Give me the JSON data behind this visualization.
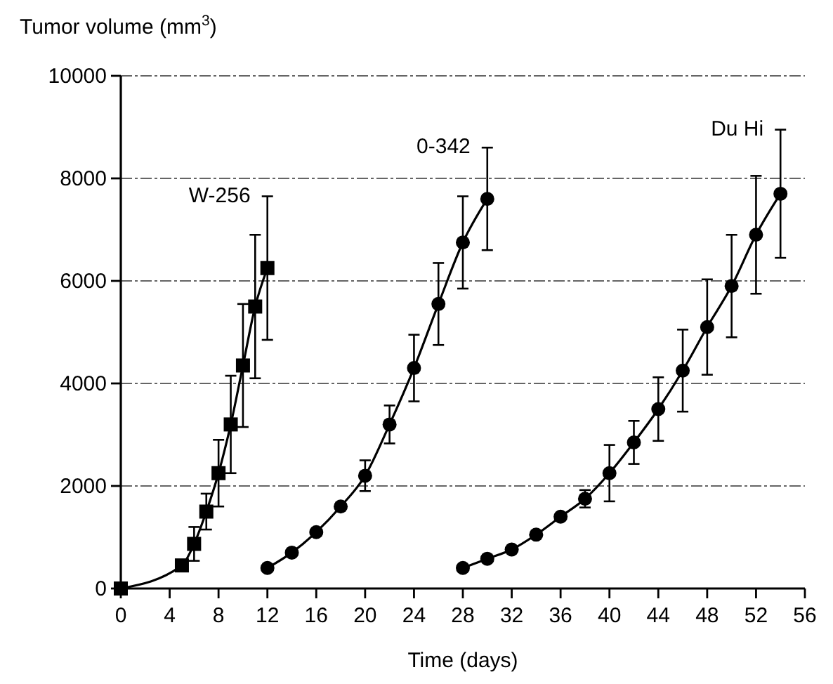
{
  "chart_data": {
    "type": "line",
    "xlabel": "Time (days)",
    "ylabel": "Tumor volume (mm$^{3}$)",
    "xlim": [
      0,
      56
    ],
    "xticks": [
      0,
      4,
      8,
      12,
      16,
      20,
      24,
      28,
      32,
      36,
      40,
      44,
      48,
      52,
      56
    ],
    "ylim": [
      0,
      10000
    ],
    "yticks": [
      0,
      2000,
      4000,
      6000,
      8000,
      10000
    ],
    "grid": "y",
    "line_style": "solid",
    "series": [
      {
        "name": "W-256",
        "color": "#000000",
        "marker": "square",
        "x": [
          0,
          5,
          6,
          7,
          8,
          9,
          10,
          11,
          12
        ],
        "values": [
          0,
          450,
          870,
          1500,
          2250,
          3200,
          4350,
          5500,
          6250
        ],
        "errors": [
          null,
          null,
          330,
          350,
          650,
          950,
          1200,
          1400,
          1400
        ]
      },
      {
        "name": "0-342",
        "color": "#000000",
        "marker": "circle",
        "x": [
          12,
          14,
          16,
          18,
          20,
          22,
          24,
          26,
          28,
          30
        ],
        "values": [
          400,
          700,
          1100,
          1600,
          2200,
          3200,
          4300,
          5550,
          6750,
          7600
        ],
        "errors": [
          null,
          null,
          null,
          null,
          300,
          370,
          650,
          800,
          900,
          1000
        ]
      },
      {
        "name": "Du Hi",
        "color": "#000000",
        "marker": "circle",
        "x": [
          28,
          30,
          32,
          34,
          36,
          38,
          40,
          42,
          44,
          46,
          48,
          50,
          52,
          54
        ],
        "values": [
          400,
          580,
          760,
          1050,
          1400,
          1750,
          2250,
          2850,
          3500,
          4250,
          5100,
          5900,
          6900,
          7700
        ],
        "errors": [
          null,
          null,
          null,
          null,
          null,
          170,
          550,
          420,
          620,
          800,
          930,
          1000,
          1150,
          1250
        ]
      }
    ]
  }
}
